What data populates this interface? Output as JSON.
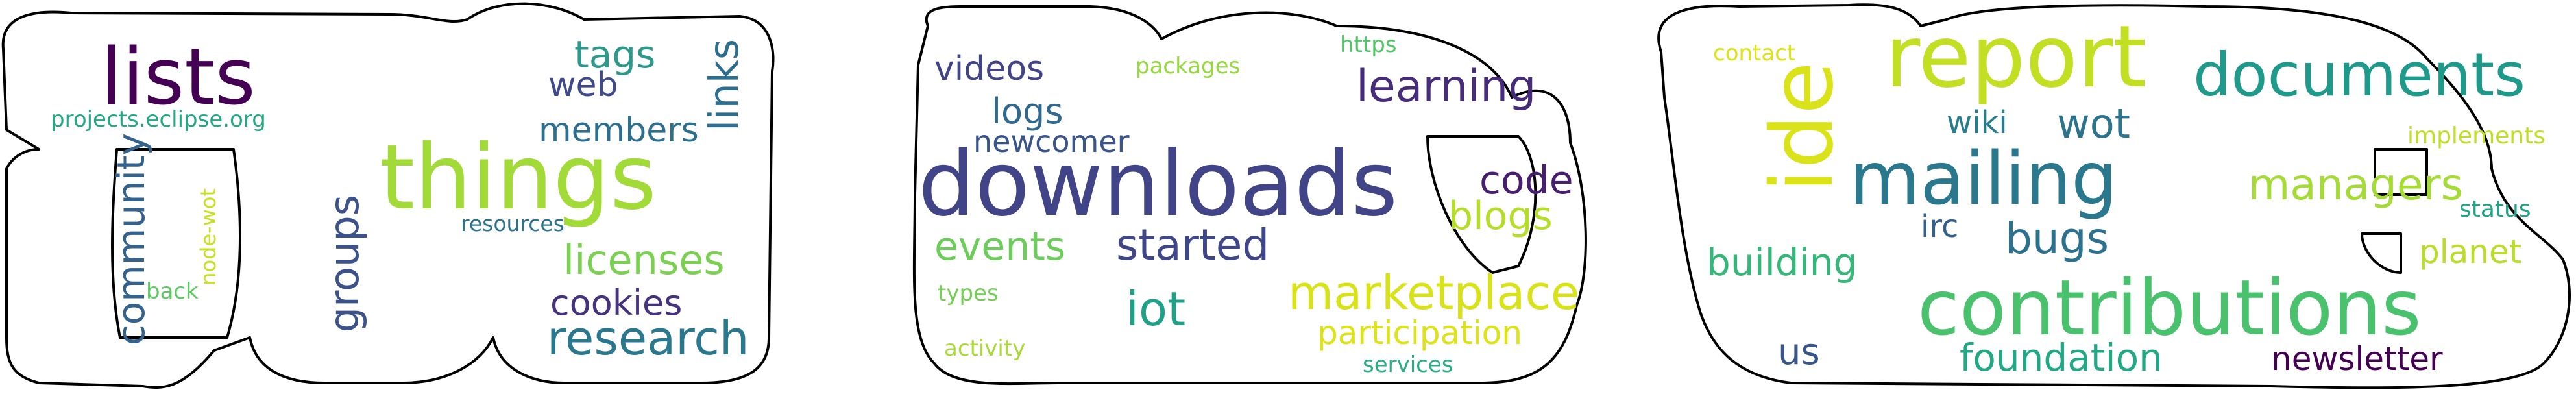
{
  "words": [
    {
      "text": "lists",
      "color": "#440154"
    },
    {
      "text": "things",
      "color": "#a2da37"
    },
    {
      "text": "tags",
      "color": "#2c998a"
    },
    {
      "text": "web",
      "color": "#3e4a89"
    },
    {
      "text": "members",
      "color": "#2d6f8e"
    },
    {
      "text": "links",
      "color": "#2e6e8e"
    },
    {
      "text": "projects.eclipse.org",
      "color": "#22a884"
    },
    {
      "text": "community",
      "color": "#33628d"
    },
    {
      "text": "node-wot",
      "color": "#c7e020"
    },
    {
      "text": "back",
      "color": "#5ec962"
    },
    {
      "text": "resources",
      "color": "#2c728e"
    },
    {
      "text": "groups",
      "color": "#3b528b"
    },
    {
      "text": "licenses",
      "color": "#7ad151"
    },
    {
      "text": "cookies",
      "color": "#46327e"
    },
    {
      "text": "research",
      "color": "#2a788e"
    },
    {
      "text": "videos",
      "color": "#414487"
    },
    {
      "text": "packages",
      "color": "#95d840"
    },
    {
      "text": "https",
      "color": "#52c569"
    },
    {
      "text": "logs",
      "color": "#31688e"
    },
    {
      "text": "newcomer",
      "color": "#3a548c"
    },
    {
      "text": "learning",
      "color": "#472c7a"
    },
    {
      "text": "downloads",
      "color": "#414487"
    },
    {
      "text": "code",
      "color": "#481f70"
    },
    {
      "text": "blogs",
      "color": "#b5de2b"
    },
    {
      "text": "events",
      "color": "#6ccd5a"
    },
    {
      "text": "started",
      "color": "#3f4788"
    },
    {
      "text": "types",
      "color": "#74d055"
    },
    {
      "text": "iot",
      "color": "#1fa188"
    },
    {
      "text": "marketplace",
      "color": "#d8e219"
    },
    {
      "text": "participation",
      "color": "#dde318"
    },
    {
      "text": "activity",
      "color": "#a8db34"
    },
    {
      "text": "services",
      "color": "#28ae80"
    },
    {
      "text": "contact",
      "color": "#dde318"
    },
    {
      "text": "report",
      "color": "#c2df23"
    },
    {
      "text": "documents",
      "color": "#1f9a8a"
    },
    {
      "text": "ide",
      "color": "#dae319"
    },
    {
      "text": "wiki",
      "color": "#287c8e"
    },
    {
      "text": "wot",
      "color": "#2c738e"
    },
    {
      "text": "mailing",
      "color": "#2a788e"
    },
    {
      "text": "implements",
      "color": "#bddf26"
    },
    {
      "text": "irc",
      "color": "#355f8d"
    },
    {
      "text": "managers",
      "color": "#a5db36"
    },
    {
      "text": "status",
      "color": "#20a386"
    },
    {
      "text": "bugs",
      "color": "#2c718e"
    },
    {
      "text": "building",
      "color": "#35b779"
    },
    {
      "text": "planet",
      "color": "#b8de29"
    },
    {
      "text": "contributions",
      "color": "#4ac16d"
    },
    {
      "text": "us",
      "color": "#39568c"
    },
    {
      "text": "foundation",
      "color": "#22a884"
    },
    {
      "text": "newsletter",
      "color": "#440154"
    }
  ]
}
